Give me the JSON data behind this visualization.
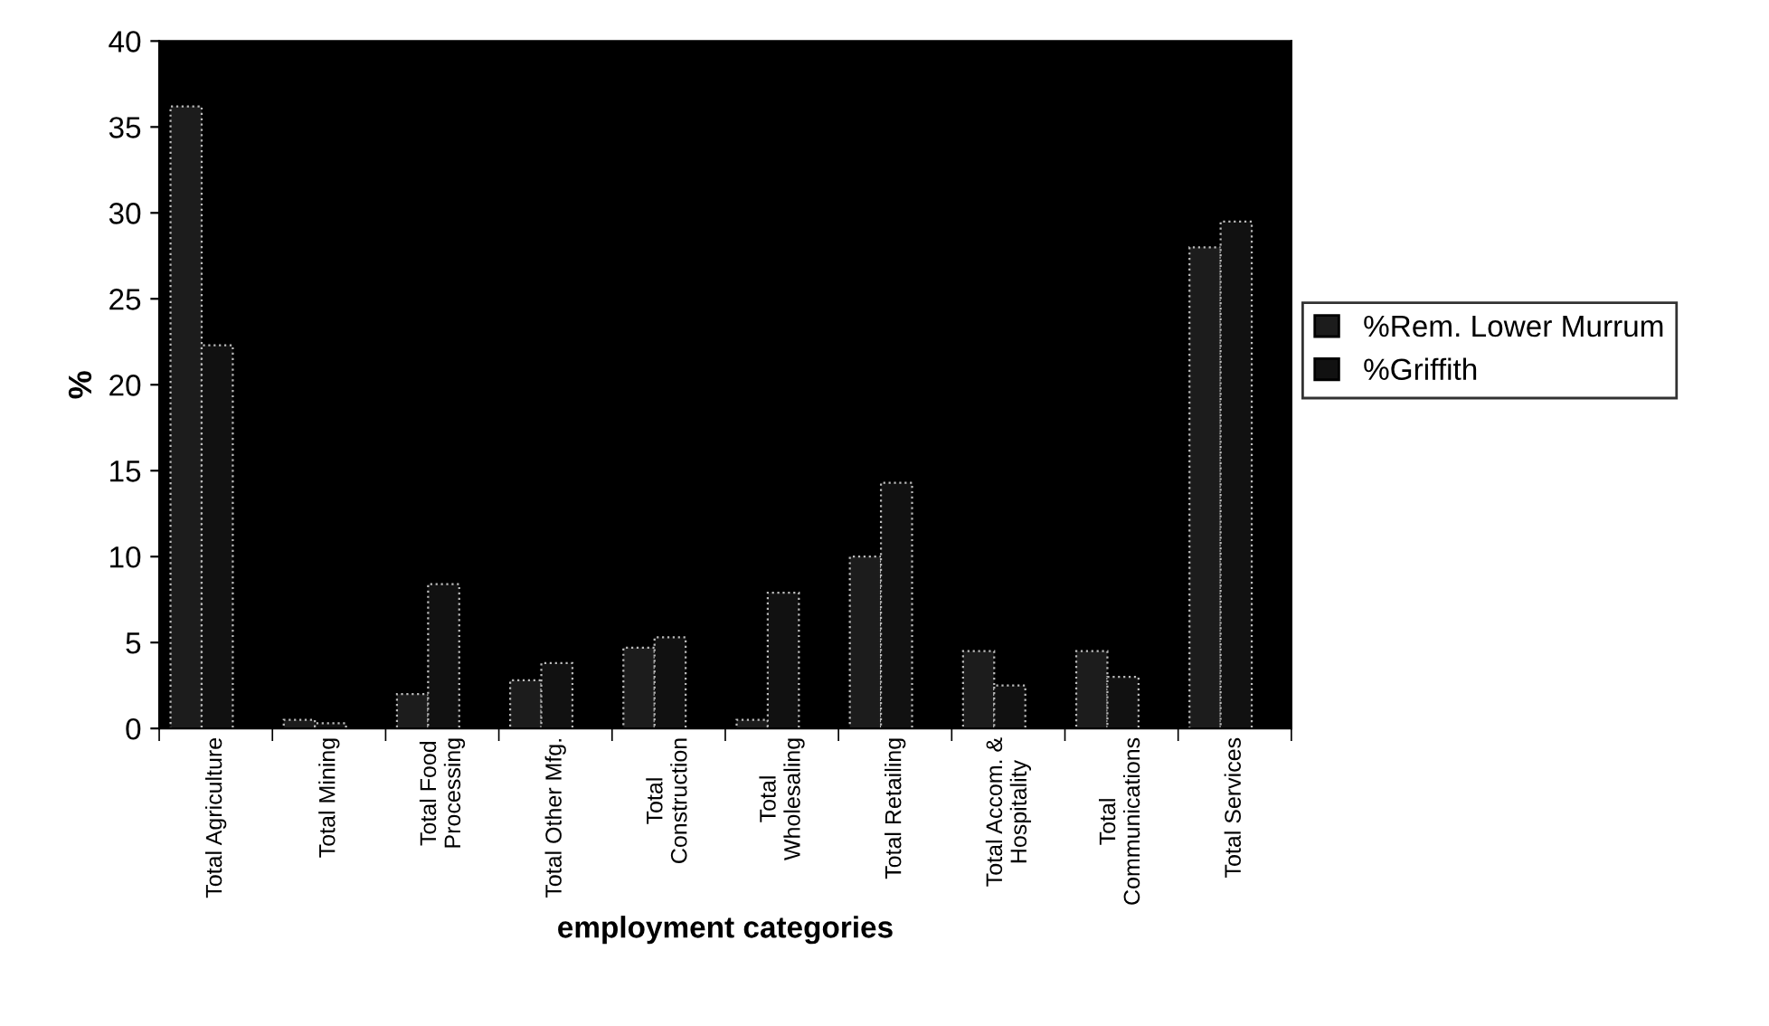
{
  "chart_data": {
    "type": "bar",
    "xlabel": "employment categories",
    "ylabel": "%",
    "categories": [
      "Total Agriculture",
      "Total Mining",
      "Total Food\nProcessing",
      "Total Other Mfg.",
      "Total\nConstruction",
      "Total\nWholesaling",
      "Total Retailing",
      "Total Accom. &\nHospitality",
      "Total\nCommunications",
      "Total Services"
    ],
    "series": [
      {
        "name": "%Rem. Lower Murrum",
        "color": "#1c1c1c",
        "values": [
          36.2,
          0.5,
          2.0,
          2.8,
          4.7,
          0.5,
          10.0,
          4.5,
          4.5,
          28.0
        ]
      },
      {
        "name": "%Griffith",
        "color": "#111111",
        "values": [
          22.3,
          0.3,
          8.4,
          3.8,
          5.3,
          7.9,
          14.3,
          2.5,
          3.0,
          29.5
        ]
      }
    ],
    "ylim": [
      0,
      40
    ],
    "yticks": [
      0,
      5,
      10,
      15,
      20,
      25,
      30,
      35,
      40
    ],
    "legend": "right",
    "grid": false
  }
}
